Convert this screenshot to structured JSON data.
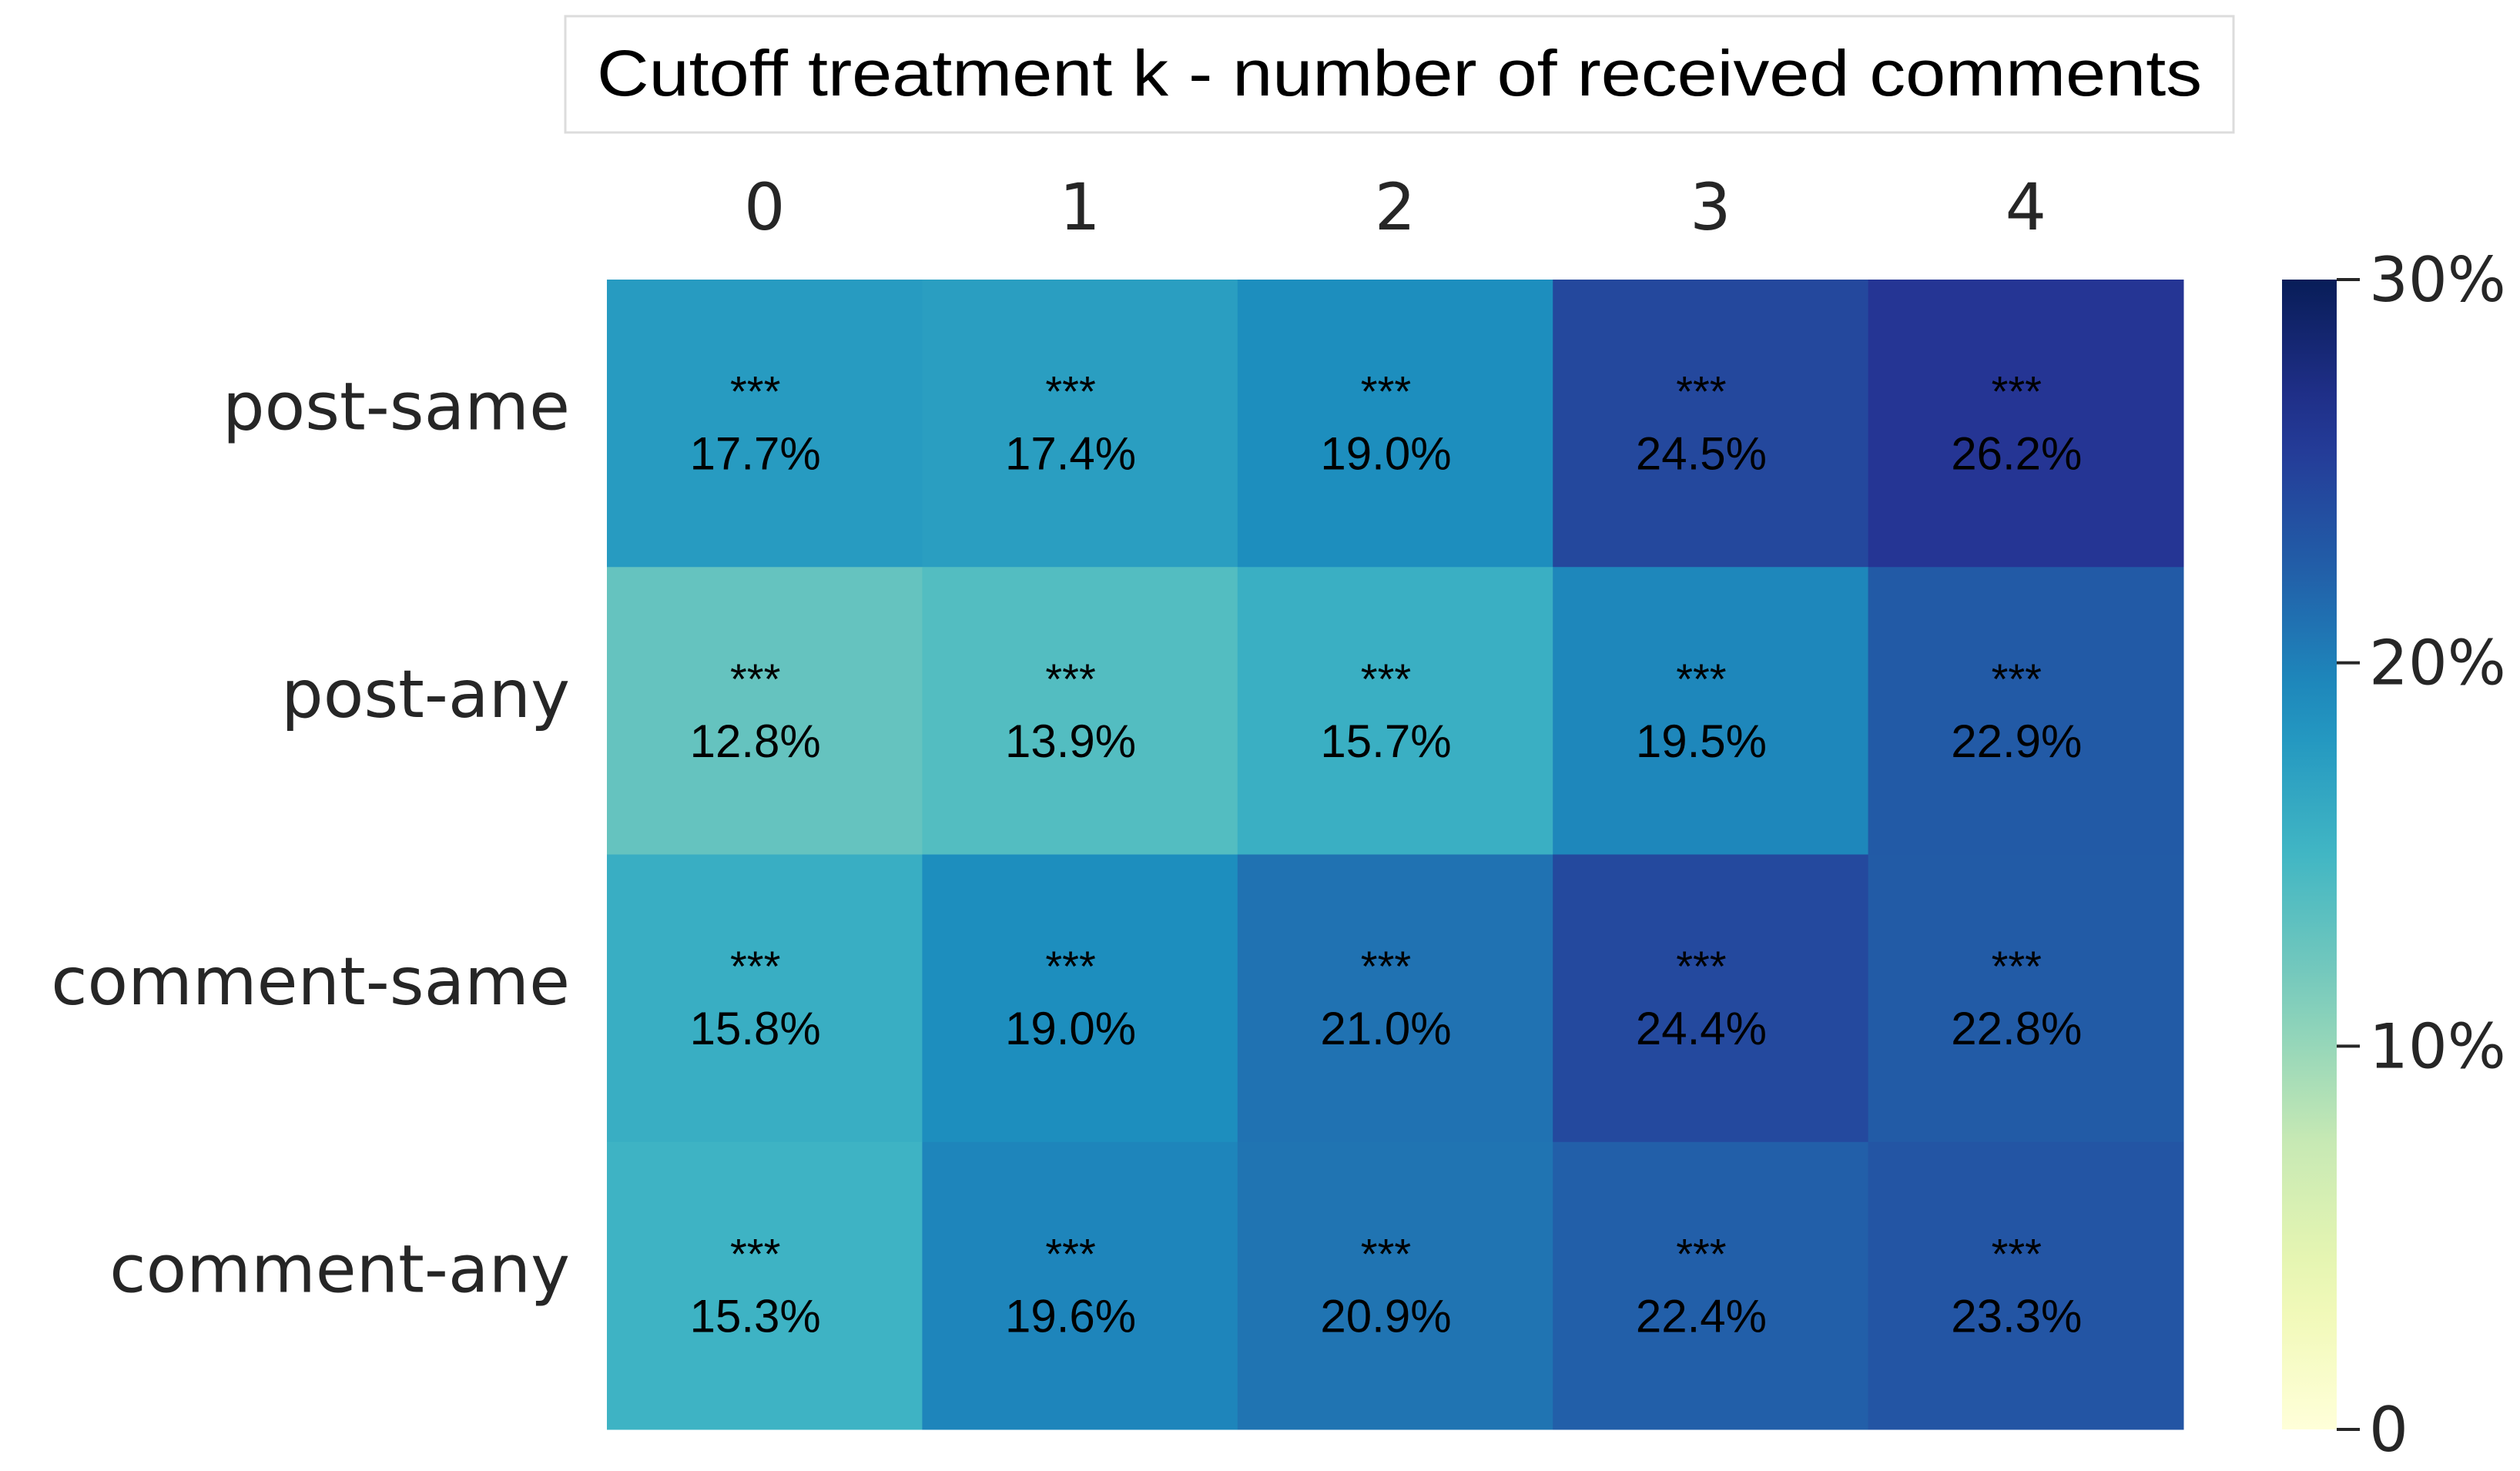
{
  "chart_data": {
    "type": "heatmap",
    "title": "Cutoff treatment k - number of received comments",
    "xlabel": "",
    "ylabel": "",
    "x_categories": [
      "0",
      "1",
      "2",
      "3",
      "4"
    ],
    "y_categories": [
      "post-same",
      "post-any",
      "comment-same",
      "comment-any"
    ],
    "values": [
      [
        17.7,
        17.4,
        19.0,
        24.5,
        26.2
      ],
      [
        12.8,
        13.9,
        15.7,
        19.5,
        22.9
      ],
      [
        15.8,
        19.0,
        21.0,
        24.4,
        22.8
      ],
      [
        15.3,
        19.6,
        20.9,
        22.4,
        23.3
      ]
    ],
    "value_labels": [
      [
        "17.7%",
        "17.4%",
        "19.0%",
        "24.5%",
        "26.2%"
      ],
      [
        "12.8%",
        "13.9%",
        "15.7%",
        "19.5%",
        "22.9%"
      ],
      [
        "15.8%",
        "19.0%",
        "21.0%",
        "24.4%",
        "22.8%"
      ],
      [
        "15.3%",
        "19.6%",
        "20.9%",
        "22.4%",
        "23.3%"
      ]
    ],
    "significance": [
      [
        "***",
        "***",
        "***",
        "***",
        "***"
      ],
      [
        "***",
        "***",
        "***",
        "***",
        "***"
      ],
      [
        "***",
        "***",
        "***",
        "***",
        "***"
      ],
      [
        "***",
        "***",
        "***",
        "***",
        "***"
      ]
    ],
    "colorbar": {
      "colormap": "YlGnBu",
      "range": [
        0,
        30
      ],
      "ticks": [
        0,
        10,
        20,
        30
      ],
      "tick_labels": [
        "0",
        "10%",
        "20%",
        "30%"
      ]
    },
    "x_axis_position": "top",
    "grid": false
  }
}
